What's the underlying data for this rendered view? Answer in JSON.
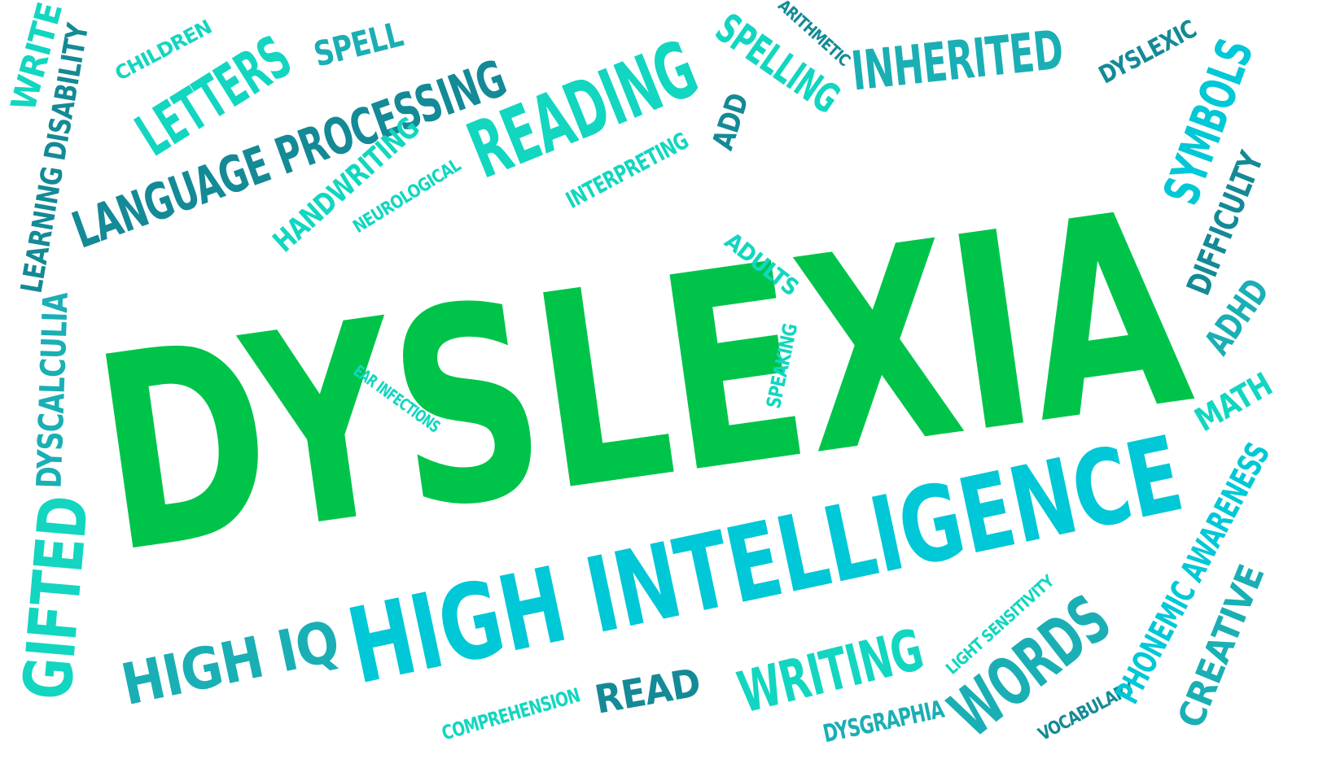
{
  "colors": {
    "primary_green": "#00C44A",
    "cyan": "#00C8D6",
    "turquoise": "#12D6C0",
    "teal": "#1AAFB4",
    "dark_teal": "#148A96"
  },
  "words": [
    {
      "id": "dyslexia",
      "text": "DYSLEXIA",
      "color": "#00C44A"
    },
    {
      "id": "high-intelligence",
      "text": "HIGH INTELLIGENCE",
      "color": "#00C8D6"
    },
    {
      "id": "language-processing",
      "text": "LANGUAGE PROCESSING",
      "color": "#148A96"
    },
    {
      "id": "reading",
      "text": "READING",
      "color": "#12D6C0"
    },
    {
      "id": "inherited",
      "text": "INHERITED",
      "color": "#1AAFB4"
    },
    {
      "id": "letters",
      "text": "LETTERS",
      "color": "#12D6C0"
    },
    {
      "id": "spelling",
      "text": "SPELLING",
      "color": "#12D6C0"
    },
    {
      "id": "spell",
      "text": "SPELL",
      "color": "#1AAFB4"
    },
    {
      "id": "children",
      "text": "CHILDREN",
      "color": "#12D6C0"
    },
    {
      "id": "write",
      "text": "WRITE",
      "color": "#12D6C0"
    },
    {
      "id": "learning-disability",
      "text": "LEARNING DISABILITY",
      "color": "#148A96"
    },
    {
      "id": "arithmetic",
      "text": "ARITHMETIC",
      "color": "#148A96"
    },
    {
      "id": "dyslexic",
      "text": "DYSLEXIC",
      "color": "#148A96"
    },
    {
      "id": "symbols",
      "text": "SYMBOLS",
      "color": "#00C8D6"
    },
    {
      "id": "difficulty",
      "text": "DIFFICULTY",
      "color": "#148A96"
    },
    {
      "id": "adhd",
      "text": "ADHD",
      "color": "#1AAFB4"
    },
    {
      "id": "math",
      "text": "MATH",
      "color": "#12D6C0"
    },
    {
      "id": "handwriting",
      "text": "HANDWRITING",
      "color": "#12D6C0"
    },
    {
      "id": "neurological",
      "text": "NEUROLOGICAL",
      "color": "#12D6C0"
    },
    {
      "id": "interpreting",
      "text": "INTERPRETING",
      "color": "#12D6C0"
    },
    {
      "id": "add",
      "text": "ADD",
      "color": "#148A96"
    },
    {
      "id": "adults",
      "text": "ADULTS",
      "color": "#12D6C0"
    },
    {
      "id": "speaking",
      "text": "SPEAKING",
      "color": "#12D6C0"
    },
    {
      "id": "ear-infections",
      "text": "EAR INFECTIONS",
      "color": "#12D6C0"
    },
    {
      "id": "dyscalculia",
      "text": "DYSCALCULIA",
      "color": "#1AAFB4"
    },
    {
      "id": "gifted",
      "text": "GIFTED",
      "color": "#12D6C0"
    },
    {
      "id": "high-iq",
      "text": "HIGH IQ",
      "color": "#1AAFB4"
    },
    {
      "id": "comprehension",
      "text": "COMPREHENSION",
      "color": "#12D6C0"
    },
    {
      "id": "read",
      "text": "READ",
      "color": "#148A96"
    },
    {
      "id": "writing",
      "text": "WRITING",
      "color": "#12D6C0"
    },
    {
      "id": "light-sensitivity",
      "text": "LIGHT SENSITIVITY",
      "color": "#12D6C0"
    },
    {
      "id": "words",
      "text": "WORDS",
      "color": "#1AAFB4"
    },
    {
      "id": "dysgraphia",
      "text": "DYSGRAPHIA",
      "color": "#1AAFB4"
    },
    {
      "id": "vocabulary",
      "text": "VOCABULARY",
      "color": "#148A96"
    },
    {
      "id": "phonemic-awareness",
      "text": "PHONEMIC AWARENESS",
      "color": "#00C8D6"
    },
    {
      "id": "creative",
      "text": "CREATIVE",
      "color": "#1AAFB4"
    }
  ]
}
